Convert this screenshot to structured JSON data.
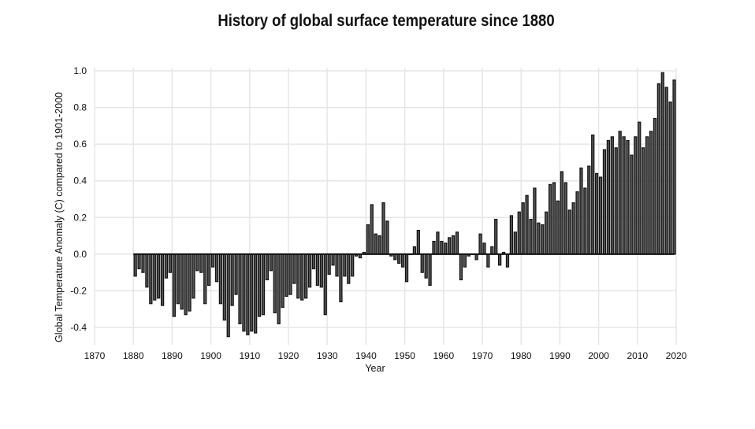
{
  "chart_data": {
    "type": "bar",
    "title": "History of global surface temperature since 1880",
    "xlabel": "Year",
    "ylabel": "Global Temperature Anomaly (C) compared to 1901-2000",
    "xlim": [
      1870,
      2020
    ],
    "ylim": [
      -0.45,
      1.0
    ],
    "xticks": [
      1870,
      1880,
      1890,
      1900,
      1910,
      1920,
      1930,
      1940,
      1950,
      1960,
      1970,
      1980,
      1990,
      2000,
      2010,
      2020
    ],
    "yticks": [
      -0.4,
      -0.2,
      0.0,
      0.2,
      0.4,
      0.6,
      0.8,
      1.0
    ],
    "ytick_labels": [
      "-0.4",
      "-0.2",
      "0.0",
      "0.2",
      "0.4",
      "0.6",
      "0.8",
      "1.0"
    ],
    "grid": true,
    "bar_color": "#555555",
    "x": [
      1880,
      1881,
      1882,
      1883,
      1884,
      1885,
      1886,
      1887,
      1888,
      1889,
      1890,
      1891,
      1892,
      1893,
      1894,
      1895,
      1896,
      1897,
      1898,
      1899,
      1900,
      1901,
      1902,
      1903,
      1904,
      1905,
      1906,
      1907,
      1908,
      1909,
      1910,
      1911,
      1912,
      1913,
      1914,
      1915,
      1916,
      1917,
      1918,
      1919,
      1920,
      1921,
      1922,
      1923,
      1924,
      1925,
      1926,
      1927,
      1928,
      1929,
      1930,
      1931,
      1932,
      1933,
      1934,
      1935,
      1936,
      1937,
      1938,
      1939,
      1940,
      1941,
      1942,
      1943,
      1944,
      1945,
      1946,
      1947,
      1948,
      1949,
      1950,
      1951,
      1952,
      1953,
      1954,
      1955,
      1956,
      1957,
      1958,
      1959,
      1960,
      1961,
      1962,
      1963,
      1964,
      1965,
      1966,
      1967,
      1968,
      1969,
      1970,
      1971,
      1972,
      1973,
      1974,
      1975,
      1976,
      1977,
      1978,
      1979,
      1980,
      1981,
      1982,
      1983,
      1984,
      1985,
      1986,
      1987,
      1988,
      1989,
      1990,
      1991,
      1992,
      1993,
      1994,
      1995,
      1996,
      1997,
      1998,
      1999,
      2000,
      2001,
      2002,
      2003,
      2004,
      2005,
      2006,
      2007,
      2008,
      2009,
      2010,
      2011,
      2012,
      2013,
      2014,
      2015,
      2016,
      2017,
      2018,
      2019
    ],
    "values": [
      -0.12,
      -0.08,
      -0.1,
      -0.18,
      -0.27,
      -0.25,
      -0.24,
      -0.28,
      -0.13,
      -0.1,
      -0.34,
      -0.27,
      -0.3,
      -0.33,
      -0.31,
      -0.24,
      -0.09,
      -0.1,
      -0.27,
      -0.17,
      -0.07,
      -0.15,
      -0.27,
      -0.36,
      -0.45,
      -0.28,
      -0.22,
      -0.38,
      -0.42,
      -0.44,
      -0.42,
      -0.43,
      -0.34,
      -0.33,
      -0.14,
      -0.09,
      -0.32,
      -0.38,
      -0.29,
      -0.23,
      -0.22,
      -0.16,
      -0.24,
      -0.25,
      -0.24,
      -0.18,
      -0.08,
      -0.17,
      -0.18,
      -0.33,
      -0.11,
      -0.06,
      -0.12,
      -0.26,
      -0.12,
      -0.16,
      -0.12,
      -0.01,
      -0.02,
      0.01,
      0.16,
      0.27,
      0.11,
      0.1,
      0.28,
      0.18,
      -0.01,
      -0.03,
      -0.05,
      -0.07,
      -0.15,
      -0.0,
      0.04,
      0.13,
      -0.1,
      -0.13,
      -0.17,
      0.07,
      0.12,
      0.07,
      0.06,
      0.09,
      0.1,
      0.12,
      -0.14,
      -0.07,
      -0.01,
      -0.0,
      -0.03,
      0.11,
      0.06,
      -0.07,
      0.04,
      0.19,
      -0.06,
      0.01,
      -0.07,
      0.21,
      0.12,
      0.23,
      0.28,
      0.32,
      0.19,
      0.36,
      0.17,
      0.16,
      0.23,
      0.38,
      0.39,
      0.29,
      0.45,
      0.39,
      0.24,
      0.28,
      0.34,
      0.47,
      0.36,
      0.48,
      0.65,
      0.44,
      0.42,
      0.57,
      0.62,
      0.64,
      0.58,
      0.67,
      0.64,
      0.62,
      0.54,
      0.64,
      0.72,
      0.58,
      0.64,
      0.67,
      0.74,
      0.93,
      0.99,
      0.91,
      0.83,
      0.95
    ]
  }
}
